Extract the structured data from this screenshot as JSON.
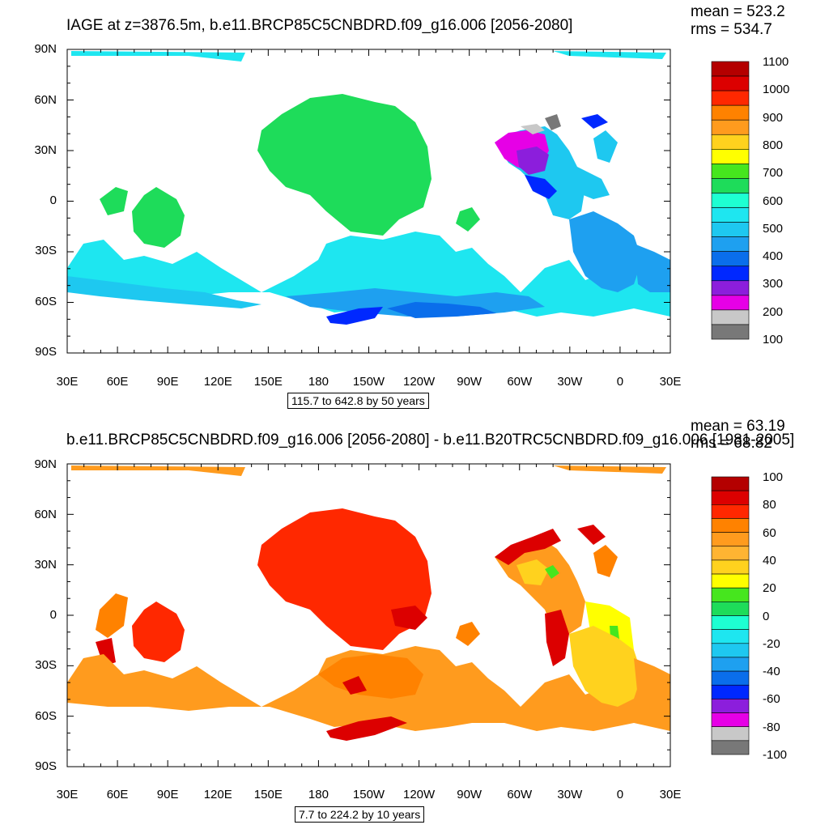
{
  "panels": [
    {
      "title": "IAGE at z=3876.5m, b.e11.BRCP85C5CNBDRD.f09_g16.006 [2056-2080]",
      "mean": "mean = 523.2",
      "rms": "rms = 534.7",
      "range_text": "115.7 to 642.8 by 50 years",
      "colorbar": {
        "labels": [
          "1100",
          "1000",
          "900",
          "800",
          "700",
          "600",
          "500",
          "400",
          "300",
          "200",
          "100"
        ],
        "colors": [
          "#b40000",
          "#dc0000",
          "#ff2800",
          "#ff8200",
          "#ff9b1e",
          "#ffd21e",
          "#ffff00",
          "#46e61e",
          "#1edc5a",
          "#1effd2",
          "#1ee6f0",
          "#1ec8f0",
          "#1ea0f0",
          "#0a6eeb",
          "#0028ff",
          "#8c1edc",
          "#e600e6",
          "#c8c8c8",
          "#787878"
        ]
      },
      "ocean_colors": {
        "atlantic_deep": "#1ee6f0",
        "pacific": "#1edc5a",
        "southern": "#1ea0f0",
        "antarctic": "#0a6eeb",
        "north_atlantic": "#e600e6",
        "labrador": "#0028ff",
        "gray": "#787878"
      }
    },
    {
      "title": "b.e11.BRCP85C5CNBDRD.f09_g16.006 [2056-2080] - b.e11.B20TRC5CNBDRD.f09_g16.006 [1981-2005]",
      "mean": "mean = 63.19",
      "rms": "rms = 68.82",
      "range_text": "7.7 to 224.2 by 10 years",
      "colorbar": {
        "labels": [
          "100",
          "80",
          "60",
          "40",
          "20",
          "0",
          "-20",
          "-40",
          "-60",
          "-80",
          "-100"
        ],
        "colors": [
          "#b40000",
          "#dc0000",
          "#ff2800",
          "#ff8200",
          "#ff9b1e",
          "#ffb432",
          "#ffd21e",
          "#ffff00",
          "#46e61e",
          "#1edc5a",
          "#1effd2",
          "#1ee6f0",
          "#1ec8f0",
          "#1ea0f0",
          "#0a6eeb",
          "#0028ff",
          "#8c1edc",
          "#e600e6",
          "#c8c8c8",
          "#787878"
        ]
      },
      "ocean_colors": {
        "pacific": "#ff2800",
        "atlantic": "#ff9b1e",
        "southern": "#ff9b1e",
        "north_atlantic": "#ffff00",
        "dark": "#dc0000"
      }
    }
  ],
  "lat_labels": [
    "90N",
    "60N",
    "30N",
    "0",
    "30S",
    "60S",
    "90S"
  ],
  "lon_labels": [
    "30E",
    "60E",
    "90E",
    "120E",
    "150E",
    "180",
    "150W",
    "120W",
    "90W",
    "60W",
    "30W",
    "0",
    "30E"
  ]
}
